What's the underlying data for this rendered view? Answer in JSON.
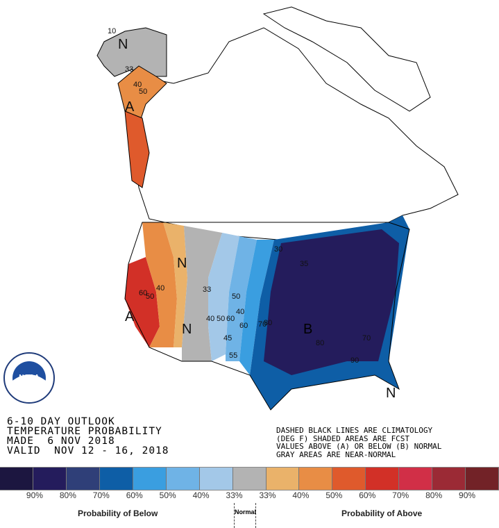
{
  "header": {
    "line1": "6-10 DAY OUTLOOK",
    "line2": "TEMPERATURE PROBABILITY",
    "line3": "MADE  6 NOV 2018",
    "line4": "VALID  NOV 12 - 16, 2018"
  },
  "notes": {
    "line1": "DASHED BLACK LINES ARE CLIMATOLOGY",
    "line2": "(DEG F) SHADED AREAS ARE FCST",
    "line3": "VALUES ABOVE (A) OR BELOW (B) NORMAL",
    "line4": "GRAY AREAS ARE NEAR-NORMAL"
  },
  "logo": {
    "text": "NOAA",
    "ring_text": "NATIONAL OCEANIC AND ATMOSPHERIC ADMINISTRATION · U.S. DEPARTMENT OF COMMERCE"
  },
  "legend": {
    "colors": [
      "#1c1640",
      "#241c5c",
      "#2f3f78",
      "#0e5ea6",
      "#3a9ee0",
      "#6fb3e6",
      "#a3c8e8",
      "#b3b3b3",
      "#eab26a",
      "#e88d45",
      "#df5a2c",
      "#d23027",
      "#d12f47",
      "#9b2a35",
      "#722227"
    ],
    "labels": [
      "90%",
      "80%",
      "70%",
      "60%",
      "50%",
      "40%",
      "33%",
      "33%",
      "40%",
      "50%",
      "60%",
      "70%",
      "80%",
      "90%"
    ],
    "below_caption": "Probability of Below",
    "normal_caption": "Normal",
    "above_caption": "Probability of Above"
  },
  "map": {
    "region_labels": {
      "alaska_n": "N",
      "alaska_a": "A",
      "west_a": "A",
      "mountain_n": "N",
      "plains_n": "N",
      "east_b": "B",
      "florida_n": "N"
    },
    "contour_labels": [
      "10",
      "33",
      "40",
      "50",
      "40",
      "50",
      "60",
      "33",
      "40",
      "50",
      "60",
      "40",
      "45",
      "50",
      "55",
      "60",
      "70",
      "80",
      "35",
      "30",
      "80",
      "70",
      "90"
    ]
  }
}
